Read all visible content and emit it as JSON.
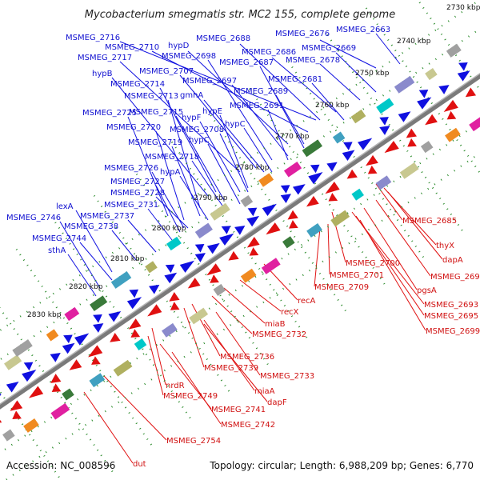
{
  "title": "Mycobacterium smegmatis str. MC2 155, complete genome",
  "footer": {
    "accession": "Accession: NC_008596",
    "summary": "Topology: circular; Length: 6,988,209 bp; Genes: 6,770"
  },
  "kbp_labels": [
    "2730 kbp",
    "2740 kbp",
    "2750 kbp",
    "2760 kbp",
    "2770 kbp",
    "2780 kbp",
    "2790 kbp",
    "2800 kbp",
    "2810 kbp",
    "2820 kbp",
    "2830 kbp"
  ],
  "colors": {
    "forward_strand": "#1010e0",
    "reverse_strand": "#e01010",
    "backbone": "#808080",
    "tick": "#2a8a2a"
  },
  "forward_labels": [
    "MSMEG_2716",
    "MSMEG_2710",
    "hypD",
    "MSMEG_2688",
    "MSMEG_2676",
    "MSMEG_2663",
    "MSMEG_2717",
    "MSMEG_2698",
    "MSMEG_2686",
    "MSMEG_2669",
    "MSMEG_2687",
    "MSMEG_2678",
    "hypB",
    "MSMEG_2707",
    "MSMEG_2714",
    "MSMEG_2697",
    "MSMEG_2681",
    "MSMEG_2713",
    "gmhA",
    "MSMEG_2689",
    "hypE",
    "MSMEG_2691",
    "MSMEG_2725",
    "MSMEG_2715",
    "hypF",
    "hypC",
    "MSMEG_2720",
    "MSMEG_2708",
    "MSMEG_2719",
    "hypC",
    "MSMEG_2718",
    "MSMEG_2726",
    "hypA",
    "MSMEG_2727",
    "MSMEG_2728",
    "lexA",
    "MSMEG_2731",
    "MSMEG_2746",
    "MSMEG_2737",
    "MSMEG_2738",
    "MSMEG_2744",
    "sthA"
  ],
  "reverse_labels": [
    "MSMEG_2685",
    "thyX",
    "dapA",
    "MSMEG_2700",
    "MSMEG_2690",
    "MSMEG_2701",
    "pgsA",
    "MSMEG_2709",
    "MSMEG_2693",
    "recA",
    "MSMEG_2695",
    "recX",
    "MSMEG_2699",
    "miaB",
    "MSMEG_2732",
    "MSMEG_2736",
    "MSMEG_2739",
    "MSMEG_2733",
    "nrdR",
    "miaA",
    "MSMEG_2749",
    "dapF",
    "MSMEG_2741",
    "MSMEG_2742",
    "MSMEG_2754",
    "dut"
  ]
}
